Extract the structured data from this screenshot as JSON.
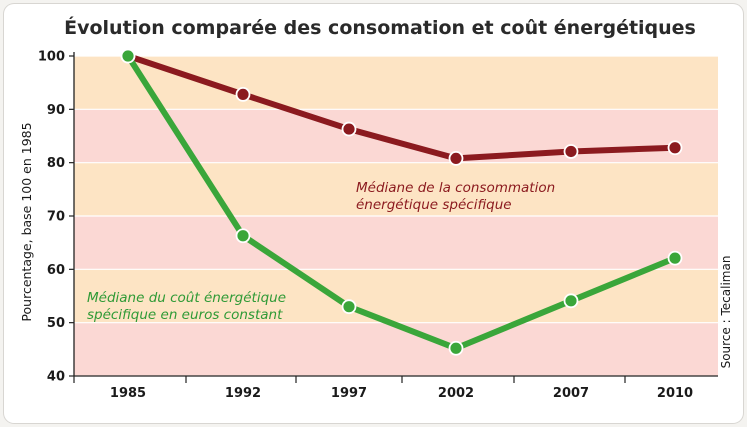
{
  "chart_data": {
    "type": "line",
    "title": "Évolution comparée des consomation et coût énergétiques",
    "ylabel": "Pourcentage, base 100 en 1985",
    "source": "Source : Tecaliman",
    "ylim": [
      40,
      100
    ],
    "yticks": [
      "100",
      "90",
      "80",
      "70",
      "60",
      "50",
      "40"
    ],
    "categories": [
      "1985",
      "1992",
      "1997",
      "2002",
      "2007",
      "2010"
    ],
    "series": [
      {
        "name": "Médiane de la consommation énergétique spécifique",
        "label_lines": [
          "Médiane de la consommation",
          "énergétique spécifique"
        ],
        "color": "#8b1a1f",
        "values": [
          100,
          92.8,
          86.3,
          80.8,
          82.1,
          82.8
        ]
      },
      {
        "name": "Médiane du coût énergétique spécifique en euros constant",
        "label_lines": [
          "Médiane du coût énergétique",
          "spécifique en euros constant"
        ],
        "color": "#3aa63a",
        "values": [
          100,
          66.3,
          53.0,
          45.2,
          54.1,
          62.1
        ]
      }
    ],
    "band_colors": [
      "#fde4c4",
      "#fbd8d4"
    ],
    "grid": true
  }
}
